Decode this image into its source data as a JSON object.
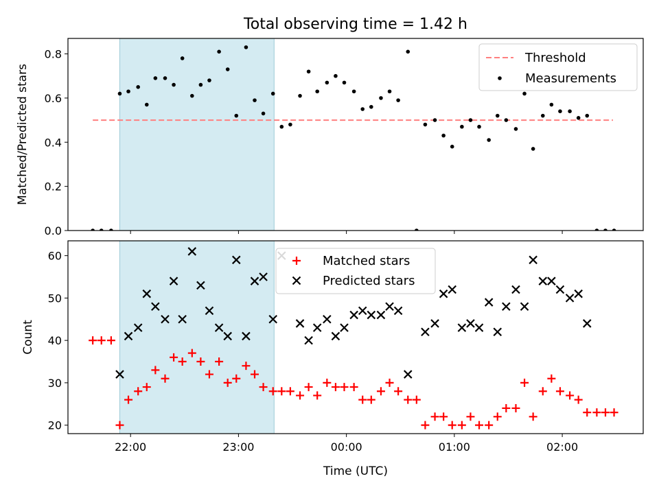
{
  "chart_data": {
    "type": "scatter",
    "title": "Total observing time = 1.42 h",
    "xlabel": "Time (UTC)",
    "x_unit": "hours_since_midnight_UTC",
    "xlim": [
      -2.58,
      2.75
    ],
    "xticks": [
      {
        "value": -2,
        "label": "22:00"
      },
      {
        "value": -1,
        "label": "23:00"
      },
      {
        "value": 0,
        "label": "00:00"
      },
      {
        "value": 1,
        "label": "01:00"
      },
      {
        "value": 2,
        "label": "02:00"
      }
    ],
    "shaded_span": {
      "x0": -2.1,
      "x1": -0.67,
      "color": "#add8e6"
    },
    "panels": [
      {
        "name": "ratio",
        "ylabel": "Matched/Predicted stars",
        "ylim": [
          0,
          0.87
        ],
        "yticks": [
          0,
          0.2,
          0.4,
          0.6,
          0.8
        ],
        "ytick_labels": [
          "0.0",
          "0.2",
          "0.4",
          "0.6",
          "0.8"
        ],
        "legend": {
          "position": "upper right",
          "entries": [
            "Threshold",
            "Measurements"
          ]
        },
        "threshold": {
          "name": "Threshold",
          "y": 0.5,
          "x": [
            -2.35,
            2.47
          ],
          "color": "#ff7f7f",
          "style": "dashed"
        },
        "series": [
          {
            "name": "Measurements",
            "marker": "dot",
            "color": "#000000",
            "points": [
              [
                -2.35,
                0.0
              ],
              [
                -2.27,
                0.0
              ],
              [
                -2.18,
                0.0
              ],
              [
                -2.1,
                0.62
              ],
              [
                -2.02,
                0.63
              ],
              [
                -1.93,
                0.65
              ],
              [
                -1.85,
                0.57
              ],
              [
                -1.77,
                0.69
              ],
              [
                -1.68,
                0.69
              ],
              [
                -1.6,
                0.66
              ],
              [
                -1.52,
                0.78
              ],
              [
                -1.43,
                0.61
              ],
              [
                -1.35,
                0.66
              ],
              [
                -1.27,
                0.68
              ],
              [
                -1.18,
                0.81
              ],
              [
                -1.1,
                0.73
              ],
              [
                -1.02,
                0.52
              ],
              [
                -0.93,
                0.83
              ],
              [
                -0.85,
                0.59
              ],
              [
                -0.77,
                0.53
              ],
              [
                -0.68,
                0.62
              ],
              [
                -0.6,
                0.47
              ],
              [
                -0.52,
                0.48
              ],
              [
                -0.43,
                0.61
              ],
              [
                -0.35,
                0.72
              ],
              [
                -0.27,
                0.63
              ],
              [
                -0.18,
                0.67
              ],
              [
                -0.1,
                0.7
              ],
              [
                -0.02,
                0.67
              ],
              [
                0.07,
                0.63
              ],
              [
                0.15,
                0.55
              ],
              [
                0.23,
                0.56
              ],
              [
                0.32,
                0.6
              ],
              [
                0.4,
                0.63
              ],
              [
                0.48,
                0.59
              ],
              [
                0.57,
                0.81
              ],
              [
                0.65,
                0.0
              ],
              [
                0.73,
                0.48
              ],
              [
                0.82,
                0.5
              ],
              [
                0.9,
                0.43
              ],
              [
                0.98,
                0.38
              ],
              [
                1.07,
                0.47
              ],
              [
                1.15,
                0.5
              ],
              [
                1.23,
                0.47
              ],
              [
                1.32,
                0.41
              ],
              [
                1.4,
                0.52
              ],
              [
                1.48,
                0.5
              ],
              [
                1.57,
                0.46
              ],
              [
                1.65,
                0.62
              ],
              [
                1.73,
                0.37
              ],
              [
                1.82,
                0.52
              ],
              [
                1.9,
                0.57
              ],
              [
                1.98,
                0.54
              ],
              [
                2.07,
                0.54
              ],
              [
                2.15,
                0.51
              ],
              [
                2.23,
                0.52
              ],
              [
                2.32,
                0.0
              ],
              [
                2.4,
                0.0
              ],
              [
                2.48,
                0.0
              ]
            ]
          }
        ]
      },
      {
        "name": "count",
        "ylabel": "Count",
        "ylim": [
          18,
          63.5
        ],
        "yticks": [
          20,
          30,
          40,
          50,
          60
        ],
        "ytick_labels": [
          "20",
          "30",
          "40",
          "50",
          "60"
        ],
        "legend": {
          "position": "upper center",
          "entries": [
            "Matched stars",
            "Predicted stars"
          ]
        },
        "series": [
          {
            "name": "Matched stars",
            "marker": "plus",
            "color": "#ff0000",
            "points": [
              [
                -2.35,
                40
              ],
              [
                -2.27,
                40
              ],
              [
                -2.18,
                40
              ],
              [
                -2.1,
                20
              ],
              [
                -2.02,
                26
              ],
              [
                -1.93,
                28
              ],
              [
                -1.85,
                29
              ],
              [
                -1.77,
                33
              ],
              [
                -1.68,
                31
              ],
              [
                -1.6,
                36
              ],
              [
                -1.52,
                35
              ],
              [
                -1.43,
                37
              ],
              [
                -1.35,
                35
              ],
              [
                -1.27,
                32
              ],
              [
                -1.18,
                35
              ],
              [
                -1.1,
                30
              ],
              [
                -1.02,
                31
              ],
              [
                -0.93,
                34
              ],
              [
                -0.85,
                32
              ],
              [
                -0.77,
                29
              ],
              [
                -0.68,
                28
              ],
              [
                -0.6,
                28
              ],
              [
                -0.52,
                28
              ],
              [
                -0.43,
                27
              ],
              [
                -0.35,
                29
              ],
              [
                -0.27,
                27
              ],
              [
                -0.18,
                30
              ],
              [
                -0.1,
                29
              ],
              [
                -0.02,
                29
              ],
              [
                0.07,
                29
              ],
              [
                0.15,
                26
              ],
              [
                0.23,
                26
              ],
              [
                0.32,
                28
              ],
              [
                0.4,
                30
              ],
              [
                0.48,
                28
              ],
              [
                0.57,
                26
              ],
              [
                0.65,
                26
              ],
              [
                0.73,
                20
              ],
              [
                0.82,
                22
              ],
              [
                0.9,
                22
              ],
              [
                0.98,
                20
              ],
              [
                1.07,
                20
              ],
              [
                1.15,
                22
              ],
              [
                1.23,
                20
              ],
              [
                1.32,
                20
              ],
              [
                1.4,
                22
              ],
              [
                1.48,
                24
              ],
              [
                1.57,
                24
              ],
              [
                1.65,
                30
              ],
              [
                1.73,
                22
              ],
              [
                1.82,
                28
              ],
              [
                1.9,
                31
              ],
              [
                1.98,
                28
              ],
              [
                2.07,
                27
              ],
              [
                2.15,
                26
              ],
              [
                2.23,
                23
              ],
              [
                2.32,
                23
              ],
              [
                2.4,
                23
              ],
              [
                2.48,
                23
              ]
            ]
          },
          {
            "name": "Predicted stars",
            "marker": "x",
            "color": "#000000",
            "points": [
              [
                -2.1,
                32
              ],
              [
                -2.02,
                41
              ],
              [
                -1.93,
                43
              ],
              [
                -1.85,
                51
              ],
              [
                -1.77,
                48
              ],
              [
                -1.68,
                45
              ],
              [
                -1.6,
                54
              ],
              [
                -1.52,
                45
              ],
              [
                -1.43,
                61
              ],
              [
                -1.35,
                53
              ],
              [
                -1.27,
                47
              ],
              [
                -1.18,
                43
              ],
              [
                -1.1,
                41
              ],
              [
                -1.02,
                59
              ],
              [
                -0.93,
                41
              ],
              [
                -0.85,
                54
              ],
              [
                -0.77,
                55
              ],
              [
                -0.68,
                45
              ],
              [
                -0.6,
                60
              ],
              [
                -0.43,
                44
              ],
              [
                -0.35,
                40
              ],
              [
                -0.27,
                43
              ],
              [
                -0.18,
                45
              ],
              [
                -0.1,
                41
              ],
              [
                -0.02,
                43
              ],
              [
                0.07,
                46
              ],
              [
                0.15,
                47
              ],
              [
                0.23,
                46
              ],
              [
                0.32,
                46
              ],
              [
                0.4,
                48
              ],
              [
                0.48,
                47
              ],
              [
                0.57,
                32
              ],
              [
                0.73,
                42
              ],
              [
                0.82,
                44
              ],
              [
                0.9,
                51
              ],
              [
                0.98,
                52
              ],
              [
                1.07,
                43
              ],
              [
                1.15,
                44
              ],
              [
                1.23,
                43
              ],
              [
                1.32,
                49
              ],
              [
                1.4,
                42
              ],
              [
                1.48,
                48
              ],
              [
                1.57,
                52
              ],
              [
                1.65,
                48
              ],
              [
                1.73,
                59
              ],
              [
                1.82,
                54
              ],
              [
                1.9,
                54
              ],
              [
                1.98,
                52
              ],
              [
                2.07,
                50
              ],
              [
                2.15,
                51
              ],
              [
                2.23,
                44
              ]
            ]
          }
        ]
      }
    ]
  }
}
